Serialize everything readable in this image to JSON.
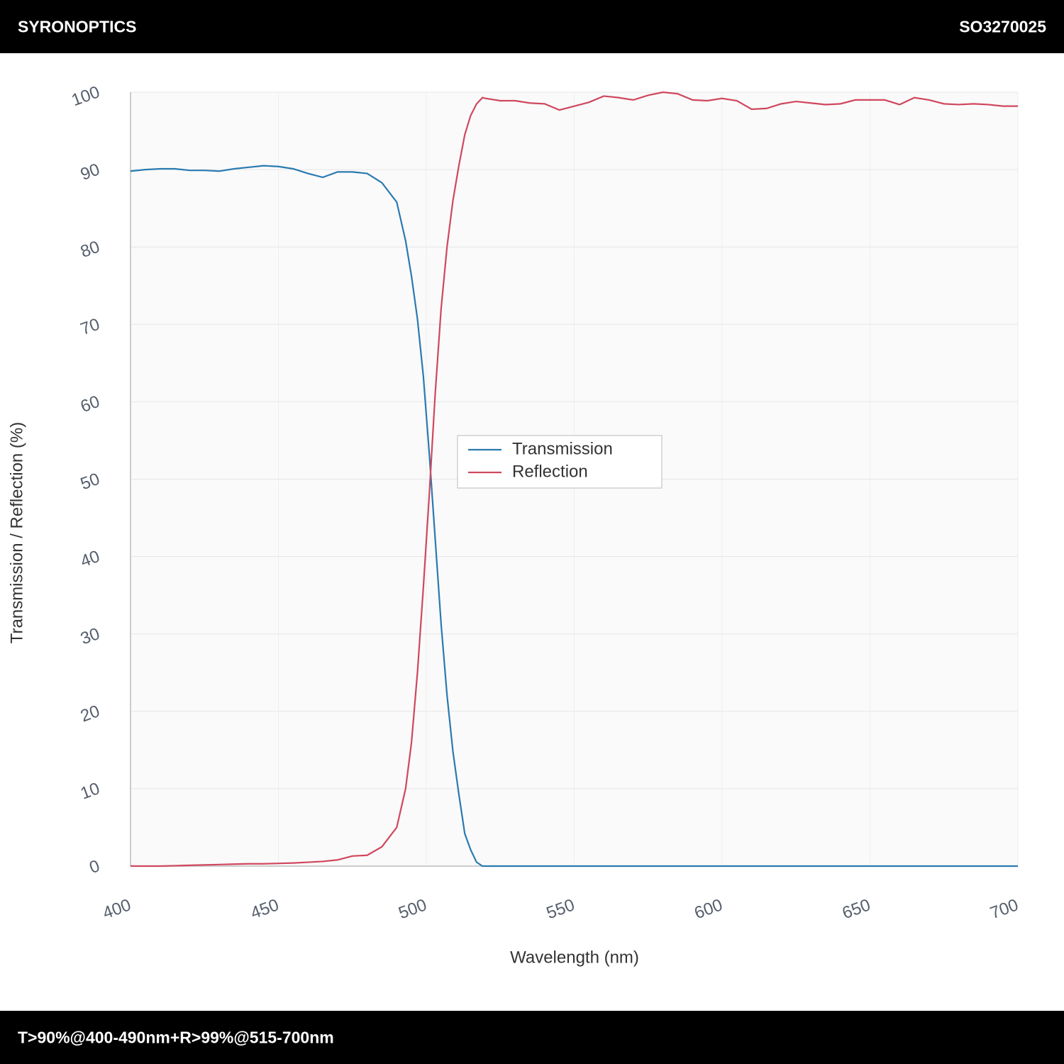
{
  "header": {
    "brand": "SYRONOPTICS",
    "code": "SO3270025"
  },
  "footer": {
    "spec": "T>90%@400-490nm+R>99%@515-700nm"
  },
  "chart_data": {
    "type": "line",
    "xlabel": "Wavelength (nm)",
    "ylabel": "Transmission / Reflection (%)",
    "x": [
      400,
      405,
      410,
      415,
      420,
      425,
      430,
      435,
      440,
      445,
      450,
      455,
      460,
      465,
      470,
      475,
      480,
      485,
      490,
      493,
      495,
      497,
      499,
      501,
      503,
      505,
      507,
      509,
      511,
      513,
      515,
      517,
      519,
      520,
      525,
      530,
      535,
      540,
      545,
      550,
      555,
      560,
      565,
      570,
      575,
      580,
      585,
      590,
      595,
      600,
      605,
      610,
      615,
      620,
      625,
      630,
      635,
      640,
      645,
      650,
      655,
      660,
      665,
      670,
      675,
      680,
      685,
      690,
      695,
      700
    ],
    "series": [
      {
        "name": "Transmission",
        "color": "#2a7ab0",
        "values": [
          89.8,
          90.0,
          90.1,
          90.1,
          89.9,
          89.9,
          89.8,
          90.1,
          90.3,
          90.5,
          90.4,
          90.1,
          89.5,
          89.0,
          89.7,
          89.7,
          89.5,
          88.3,
          85.8,
          80.8,
          76.2,
          70.7,
          63.3,
          53.3,
          42.3,
          31.3,
          22.1,
          14.8,
          9.3,
          4.2,
          2.1,
          0.5,
          0,
          0,
          0,
          0,
          0,
          0,
          0,
          0,
          0,
          0,
          0,
          0,
          0,
          0,
          0,
          0,
          0,
          0,
          0,
          0,
          0,
          0,
          0,
          0,
          0,
          0,
          0,
          0,
          0,
          0,
          0,
          0,
          0,
          0,
          0,
          0,
          0,
          0
        ]
      },
      {
        "name": "Reflection",
        "color": "#d0475e",
        "values": [
          0,
          0,
          0,
          0.05,
          0.1,
          0.15,
          0.2,
          0.25,
          0.3,
          0.3,
          0.35,
          0.4,
          0.5,
          0.6,
          0.8,
          1.3,
          1.4,
          2.5,
          5.0,
          10,
          16,
          25,
          36,
          48,
          61,
          72,
          80,
          86,
          90.5,
          94.5,
          97,
          98.5,
          99.3,
          99.2,
          98.9,
          98.9,
          98.6,
          98.5,
          97.7,
          98.2,
          98.7,
          99.5,
          99.3,
          99.0,
          99.6,
          100,
          99.8,
          99.0,
          98.9,
          99.2,
          98.9,
          97.8,
          97.9,
          98.5,
          98.8,
          98.6,
          98.4,
          98.5,
          99.0,
          99.0,
          99.0,
          98.4,
          99.3,
          99.0,
          98.5,
          98.4,
          98.5,
          98.4,
          98.2,
          98.2
        ]
      }
    ],
    "xlim": [
      400,
      700
    ],
    "xticks": [
      400,
      450,
      500,
      550,
      600,
      650,
      700
    ],
    "ylim": [
      0,
      100
    ],
    "yticks": [
      0,
      10,
      20,
      30,
      40,
      50,
      60,
      70,
      80,
      90,
      100
    ],
    "grid": true,
    "legend": "center"
  }
}
